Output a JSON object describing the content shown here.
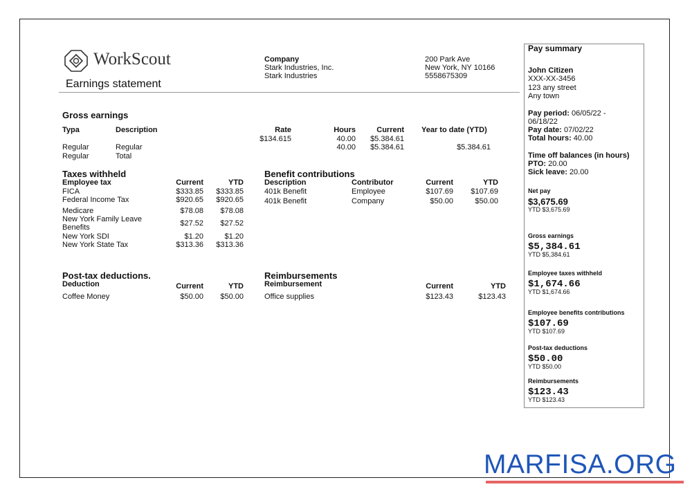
{
  "brand": "WorkScout",
  "title": "Earnings statement",
  "company": {
    "label": "Company",
    "name1": "Stark Industries, Inc.",
    "name2": "Stark Industries",
    "addr1": "200 Park Ave",
    "addr2": "New York, NY 10166",
    "phone": "5558675309"
  },
  "gross": {
    "title": "Gross earnings",
    "headers": [
      "Typa",
      "Description",
      "Rate",
      "Hours",
      "Current",
      "Year to date (YTD)"
    ],
    "rate": "$134.615",
    "rate_hours": "40.00",
    "rate_current": "$5.384.61",
    "rows": [
      {
        "type": "Regular",
        "desc": "Regular",
        "hours": "40.00",
        "current": "$5.384.61",
        "ytd": "$5.384.61"
      },
      {
        "type": "Regular",
        "desc": "Total"
      }
    ]
  },
  "taxes": {
    "title": "Taxes withheld",
    "headers": [
      "Employee tax",
      "Current",
      "YTD"
    ],
    "rows": [
      {
        "name": "FICA",
        "current": "$333.85",
        "ytd": "$333.85"
      },
      {
        "name": "Federal Income Tax",
        "current": "$920.65",
        "ytd": "$920.65"
      },
      {
        "name": "Medicare",
        "current": "$78.08",
        "ytd": "$78.08"
      },
      {
        "name": "New York Family Leave",
        "name2": "Benefits",
        "current": "$27.52",
        "ytd": "$27.52"
      },
      {
        "name": "New York SDI",
        "current": "$1.20",
        "ytd": "$1.20"
      },
      {
        "name": "New York State Tax",
        "current": "$313.36",
        "ytd": "$313.36"
      }
    ]
  },
  "benefits": {
    "title": "Benefit contributions",
    "headers": [
      "Description",
      "Contributor",
      "Current",
      "YTD"
    ],
    "rows": [
      {
        "desc": "401k Benefit",
        "contributor": "Employee",
        "current": "$107.69",
        "ytd": "$107.69"
      },
      {
        "desc": "401k Benefit",
        "contributor": "Company",
        "current": "$50.00",
        "ytd": "$50.00"
      }
    ]
  },
  "posttax": {
    "title": "Post-tax deductions.",
    "headers": [
      "Deduction",
      "Current",
      "YTD"
    ],
    "rows": [
      {
        "name": "Coffee Money",
        "current": "$50.00",
        "ytd": "$50.00"
      }
    ]
  },
  "reimb": {
    "title": "Reimbursements",
    "headers": [
      "Reimbursement",
      "Current",
      "YTD"
    ],
    "rows": [
      {
        "name": "Office supplies",
        "current": "$123.43",
        "ytd": "$123.43"
      }
    ]
  },
  "summary": {
    "title": "Pay summary",
    "name": "John Citizen",
    "ssn": "XXX-XX-3456",
    "street": "123 any street",
    "town": "Any town",
    "period_label": "Pay period:",
    "period": "06/05/22 -",
    "period2": "06/18/22",
    "date_label": "Pay date:",
    "date": "07/02/22",
    "hours_label": "Total hours:",
    "hours": "40.00",
    "timeoff_title": "Time off balances (in hours)",
    "pto_label": "PTO:",
    "pto": "20.00",
    "sick_label": "Sick leave:",
    "sick": "20.00",
    "net_label": "Net pay",
    "net": "$3,675.69",
    "net_ytd": "YTD $3,675.69",
    "items": [
      {
        "label": "Gross earnings",
        "value": "$5,384.61",
        "ytd": "YTD $5,384.61"
      },
      {
        "label": "Employee taxes withheld",
        "value": "$1,674.66",
        "ytd": "YTD $1,674.66"
      },
      {
        "label": "Employee benefits contributions",
        "value": "$107.69",
        "ytd": "YTD $107.69"
      },
      {
        "label": "Post-tax deductions",
        "value": "$50.00",
        "ytd": "YTD $50.00"
      },
      {
        "label": "Reimbursements",
        "value": "$123.43",
        "ytd": "YTD $123.43"
      }
    ]
  },
  "watermark": {
    "text": "MARFISA.ORG",
    "color": "#1f56b8",
    "underline": "#e86464"
  }
}
